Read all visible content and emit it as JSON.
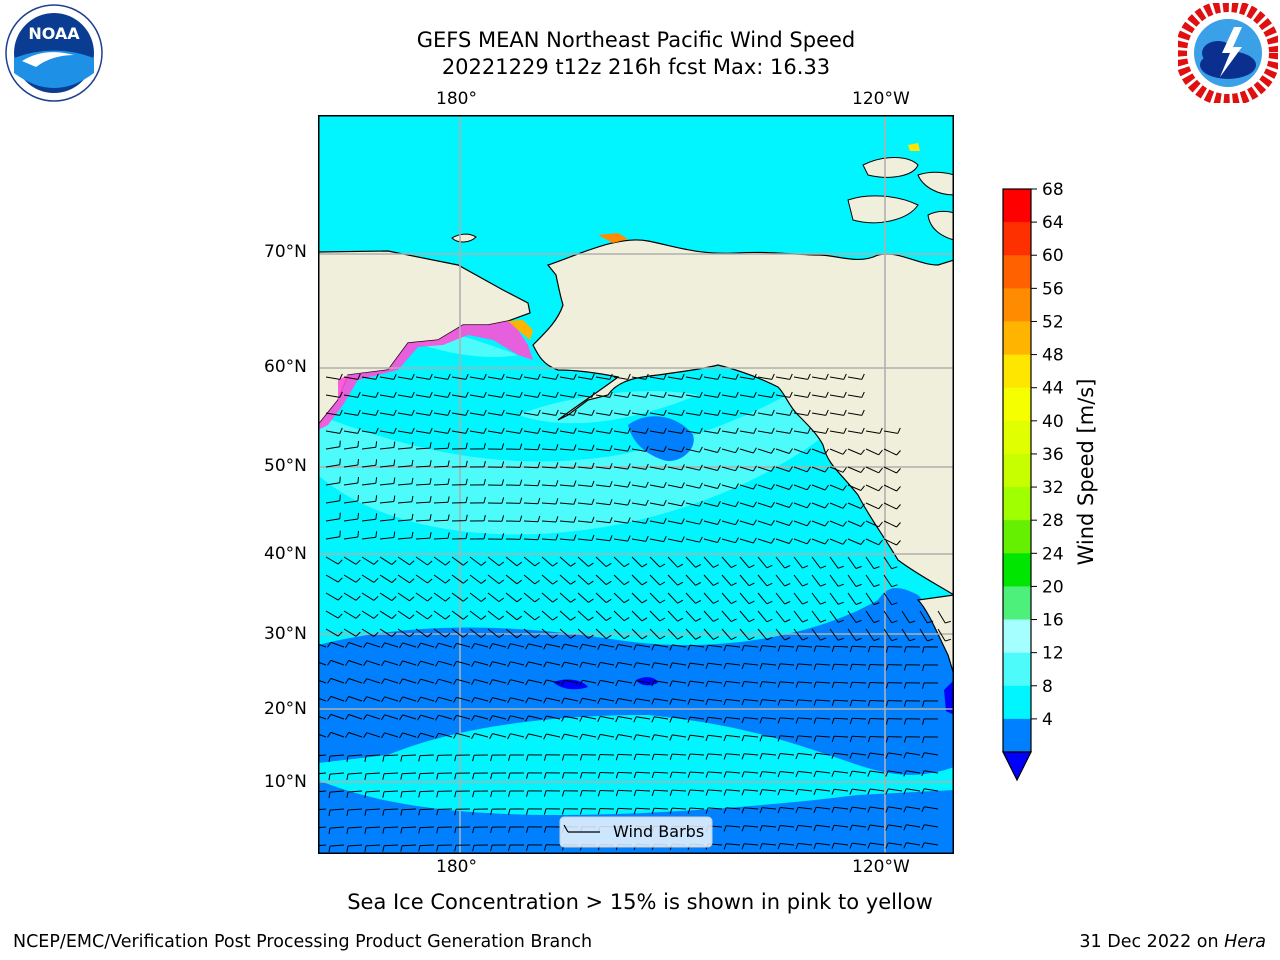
{
  "title": {
    "line1": "GEFS MEAN Northeast Pacific Wind Speed",
    "line2": "20221229 t12z 216h fcst   Max: 16.33"
  },
  "axes": {
    "x_top": [
      "180°",
      "120°W"
    ],
    "x_bottom": [
      "180°",
      "120°W"
    ],
    "y_left": [
      "70°N",
      "60°N",
      "50°N",
      "40°N",
      "30°N",
      "20°N",
      "10°N"
    ]
  },
  "legend": {
    "label": "Wind Barbs"
  },
  "colorbar": {
    "label": "Wind Speed [m/s]",
    "ticks": [
      "68",
      "64",
      "60",
      "56",
      "52",
      "48",
      "44",
      "40",
      "36",
      "32",
      "28",
      "24",
      "20",
      "16",
      "12",
      "8",
      "4"
    ],
    "colors": [
      "#ff0000",
      "#ff3000",
      "#ff6000",
      "#ff8c00",
      "#ffb400",
      "#ffe600",
      "#f5ff00",
      "#e0ff00",
      "#c8ff00",
      "#a0ff00",
      "#64f000",
      "#00e600",
      "#4cf07a",
      "#a6ffff",
      "#4dfbfb",
      "#00f5ff",
      "#0080ff"
    ],
    "under_color": "#0000ff"
  },
  "caption": "Sea Ice Concentration > 15% is shown in pink to yellow",
  "footer": {
    "left": "NCEP/EMC/Verification Post Processing Product Generation Branch",
    "right_prefix": "31 Dec 2022 on ",
    "right_host": "Hera"
  },
  "logos": {
    "noaa_text": "NOAA",
    "noaa_ring": "NATIONAL OCEANIC AND ATMOSPHERIC ADMINISTRATION · U.S. DEPARTMENT OF COMMERCE",
    "nws_ring": "NATIONAL WEATHER SERVICE"
  },
  "colors": {
    "land": "#efefdc",
    "ocean_8_12": "#00f5ff",
    "ocean_12_16": "#4dfbfb",
    "ocean_4_8": "#0080ff",
    "ocean_lt4": "#0000ff",
    "grid": "#b0b0b0"
  }
}
